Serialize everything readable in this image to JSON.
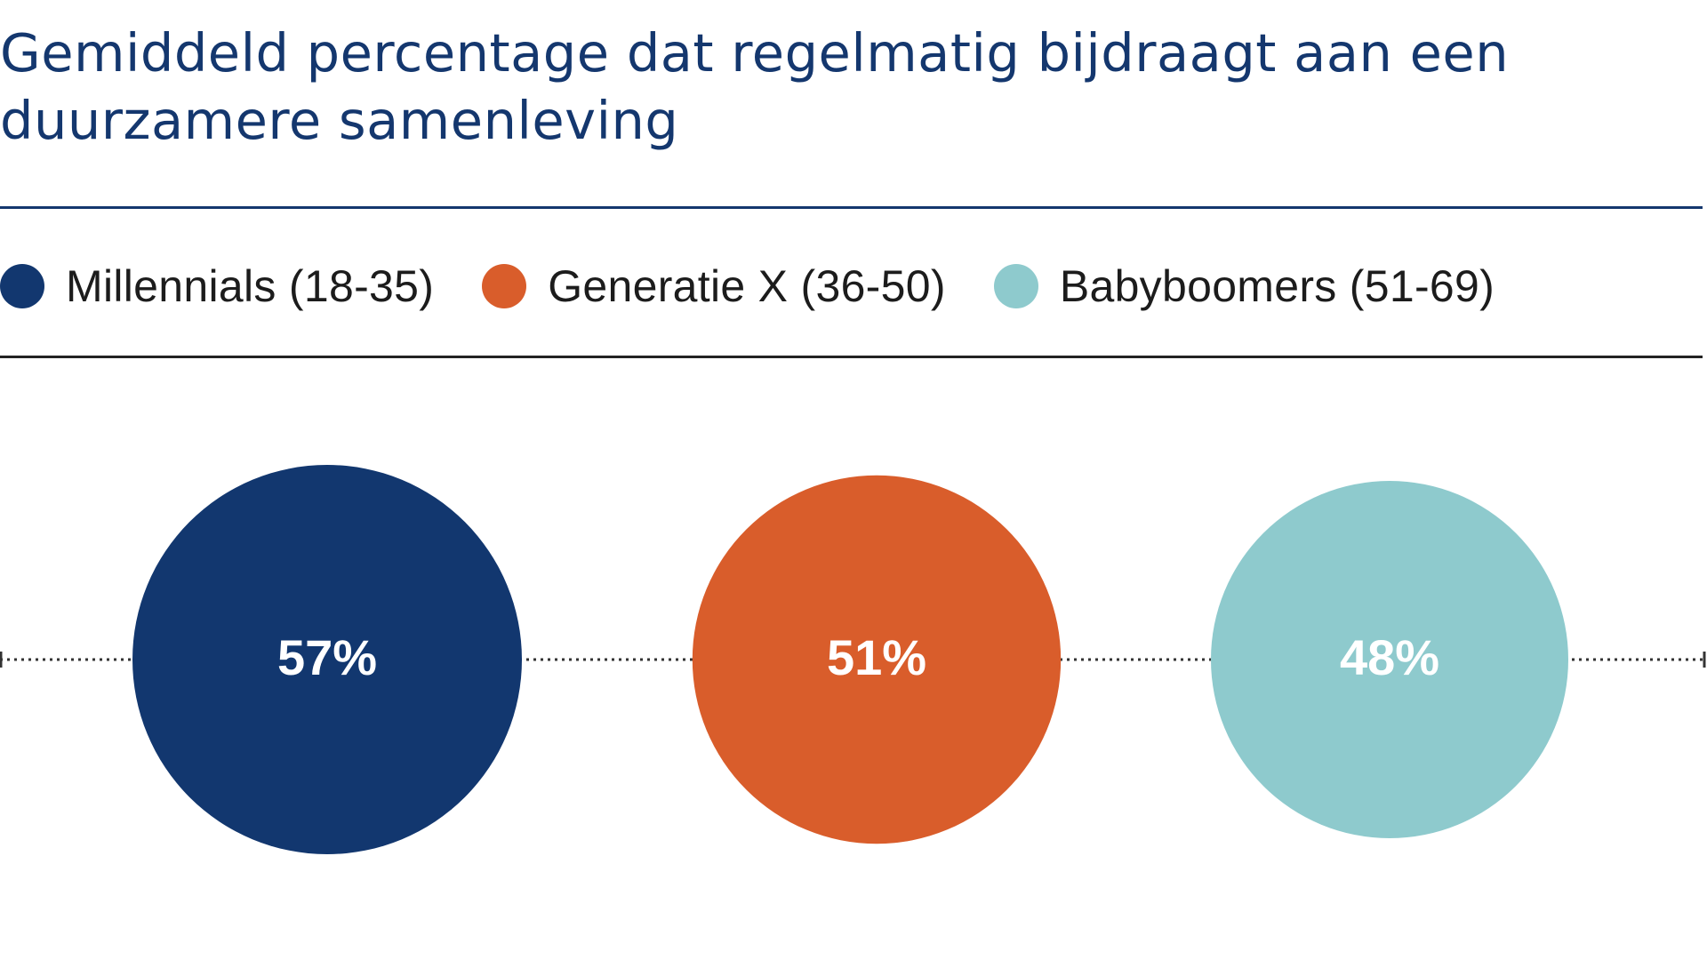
{
  "chart_data": {
    "type": "bubble",
    "title_lines": [
      "Gemiddeld percentage dat regelmatig bijdraagt aan een",
      "duurzamere samenleving"
    ],
    "categories": [
      "Millennials (18-35)",
      "Generatie X (36-50)",
      "Babyboomers (51-69)"
    ],
    "values": [
      57,
      51,
      48
    ],
    "value_labels": [
      "57%",
      "51%",
      "48%"
    ],
    "colors": [
      "#12376f",
      "#d95d2b",
      "#8ecacd"
    ],
    "legend_position": "top"
  }
}
